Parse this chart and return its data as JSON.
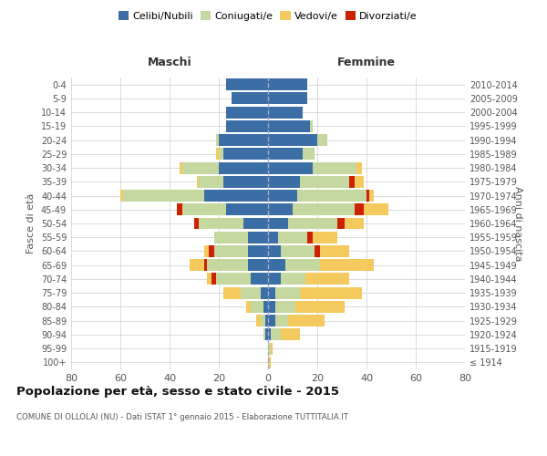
{
  "age_groups": [
    "100+",
    "95-99",
    "90-94",
    "85-89",
    "80-84",
    "75-79",
    "70-74",
    "65-69",
    "60-64",
    "55-59",
    "50-54",
    "45-49",
    "40-44",
    "35-39",
    "30-34",
    "25-29",
    "20-24",
    "15-19",
    "10-14",
    "5-9",
    "0-4"
  ],
  "birth_years": [
    "≤ 1914",
    "1915-1919",
    "1920-1924",
    "1925-1929",
    "1930-1934",
    "1935-1939",
    "1940-1944",
    "1945-1949",
    "1950-1954",
    "1955-1959",
    "1960-1964",
    "1965-1969",
    "1970-1974",
    "1975-1979",
    "1980-1984",
    "1985-1989",
    "1990-1994",
    "1995-1999",
    "2000-2004",
    "2005-2009",
    "2010-2014"
  ],
  "males": {
    "celibi": [
      0,
      0,
      1,
      1,
      2,
      3,
      7,
      8,
      8,
      8,
      10,
      17,
      26,
      18,
      20,
      18,
      20,
      17,
      17,
      15,
      17
    ],
    "coniugati": [
      0,
      0,
      1,
      2,
      5,
      8,
      14,
      17,
      14,
      14,
      18,
      18,
      33,
      10,
      15,
      2,
      1,
      0,
      0,
      0,
      0
    ],
    "vedovi": [
      0,
      0,
      0,
      2,
      2,
      7,
      2,
      6,
      2,
      0,
      0,
      0,
      1,
      1,
      1,
      1,
      0,
      0,
      0,
      0,
      0
    ],
    "divorziati": [
      0,
      0,
      0,
      0,
      0,
      0,
      2,
      1,
      2,
      0,
      2,
      2,
      0,
      0,
      0,
      0,
      0,
      0,
      0,
      0,
      0
    ]
  },
  "females": {
    "nubili": [
      0,
      0,
      1,
      3,
      3,
      3,
      5,
      7,
      5,
      4,
      8,
      10,
      12,
      13,
      18,
      14,
      20,
      17,
      14,
      16,
      16
    ],
    "coniugate": [
      0,
      1,
      4,
      5,
      8,
      10,
      10,
      14,
      14,
      12,
      20,
      25,
      28,
      20,
      18,
      5,
      4,
      1,
      0,
      0,
      0
    ],
    "vedove": [
      1,
      1,
      8,
      15,
      20,
      25,
      18,
      22,
      12,
      10,
      8,
      10,
      2,
      4,
      2,
      0,
      0,
      0,
      0,
      0,
      0
    ],
    "divorziate": [
      0,
      0,
      0,
      0,
      0,
      0,
      0,
      0,
      2,
      2,
      3,
      4,
      1,
      2,
      0,
      0,
      0,
      0,
      0,
      0,
      0
    ]
  },
  "colors": {
    "celibi_nubili": "#3a6ea5",
    "coniugati": "#c5d8a0",
    "vedovi": "#f4c95d",
    "divorziati": "#cc2200"
  },
  "xlim": 80,
  "title": "Popolazione per età, sesso e stato civile - 2015",
  "subtitle": "COMUNE DI OLLOLAI (NU) - Dati ISTAT 1° gennaio 2015 - Elaborazione TUTTITALIA.IT",
  "ylabel_left": "Fasce di età",
  "ylabel_right": "Anni di nascita",
  "xlabel_left": "Maschi",
  "xlabel_right": "Femmine",
  "background_color": "#ffffff",
  "grid_color": "#cccccc"
}
